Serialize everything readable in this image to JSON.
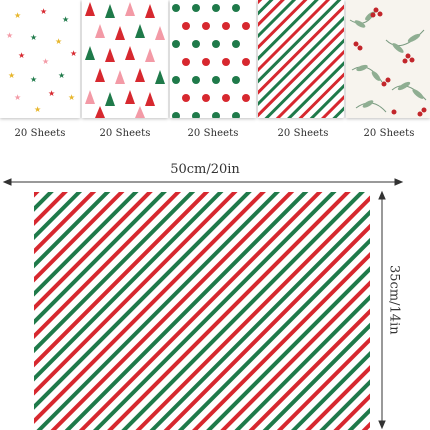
{
  "swatches": [
    {
      "name": "stars",
      "count_label": "20 Sheets"
    },
    {
      "name": "christmas-trees",
      "count_label": "20 Sheets"
    },
    {
      "name": "polka-dots",
      "count_label": "20 Sheets"
    },
    {
      "name": "diagonal-stripes",
      "count_label": "20 Sheets"
    },
    {
      "name": "holly-berries",
      "count_label": "20 Sheets"
    }
  ],
  "dimensions": {
    "width_label": "50cm/20in",
    "height_label": "35cm/14in"
  },
  "colors": {
    "red": "#d7282f",
    "green": "#1f7a4a",
    "white": "#ffffff",
    "pink": "#f39aa6",
    "gold": "#e7b62c"
  }
}
